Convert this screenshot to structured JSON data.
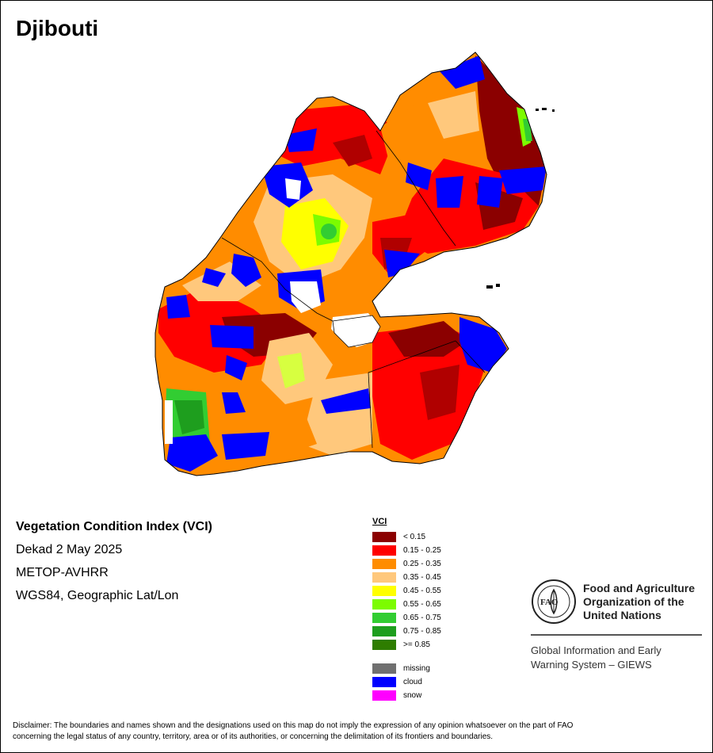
{
  "map": {
    "title": "Djibouti",
    "info": {
      "index_title": "Vegetation Condition Index (VCI)",
      "period": "Dekad 2 May 2025",
      "sensor": "METOP-AVHRR",
      "projection": "WGS84, Geographic Lat/Lon"
    },
    "legend": {
      "title": "VCI",
      "classes": [
        {
          "label": "< 0.15",
          "color": "#8b0000"
        },
        {
          "label": "0.15 - 0.25",
          "color": "#ff0000"
        },
        {
          "label": "0.25 - 0.35",
          "color": "#ff8c00"
        },
        {
          "label": "0.35 - 0.45",
          "color": "#ffc87c"
        },
        {
          "label": "0.45 - 0.55",
          "color": "#ffff00"
        },
        {
          "label": "0.55 - 0.65",
          "color": "#7cfc00"
        },
        {
          "label": "0.65 - 0.75",
          "color": "#32cd32"
        },
        {
          "label": "0.75 - 0.85",
          "color": "#1e9e1e"
        },
        {
          "label": ">= 0.85",
          "color": "#2e7d00"
        }
      ],
      "special": [
        {
          "label": "missing",
          "color": "#707070"
        },
        {
          "label": "cloud",
          "color": "#0000ff"
        },
        {
          "label": "snow",
          "color": "#ff00ff"
        }
      ]
    },
    "organization": {
      "logo_text": "FAO",
      "name_line1": "Food and Agriculture",
      "name_line2": "Organization of the",
      "name_line3": "United Nations",
      "system_line1": "Global Information and Early",
      "system_line2": "Warning System – GIEWS"
    },
    "disclaimer_line1": "Disclaimer: The boundaries and names shown and the designations used on this map do not imply the expression of any opinion whatsoever on the part of FAO",
    "disclaimer_line2": "concerning the legal status of any country, territory, area or of its authorities, or concerning the delimitation of its frontiers and boundaries."
  }
}
